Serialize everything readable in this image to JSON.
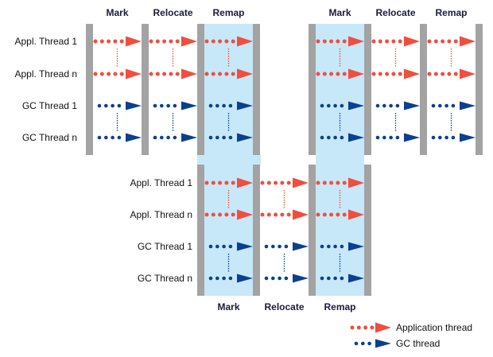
{
  "colors": {
    "app": "#f04e3e",
    "gc": "#0b3f8f",
    "remap_bg": "#c7e8f8",
    "bar": "#a3a3a3"
  },
  "thread_labels": [
    "Appl. Thread 1",
    "Appl. Thread n",
    "GC Thread 1",
    "GC Thread n"
  ],
  "cycles": [
    {
      "phases": [
        "Mark",
        "Relocate",
        "Remap"
      ]
    },
    {
      "phases": [
        "Mark",
        "Relocate",
        "Remap"
      ]
    },
    {
      "phases": [
        "Mark",
        "Relocate",
        "Remap"
      ]
    }
  ],
  "legend": {
    "app": "Application thread",
    "gc": "GC thread"
  }
}
